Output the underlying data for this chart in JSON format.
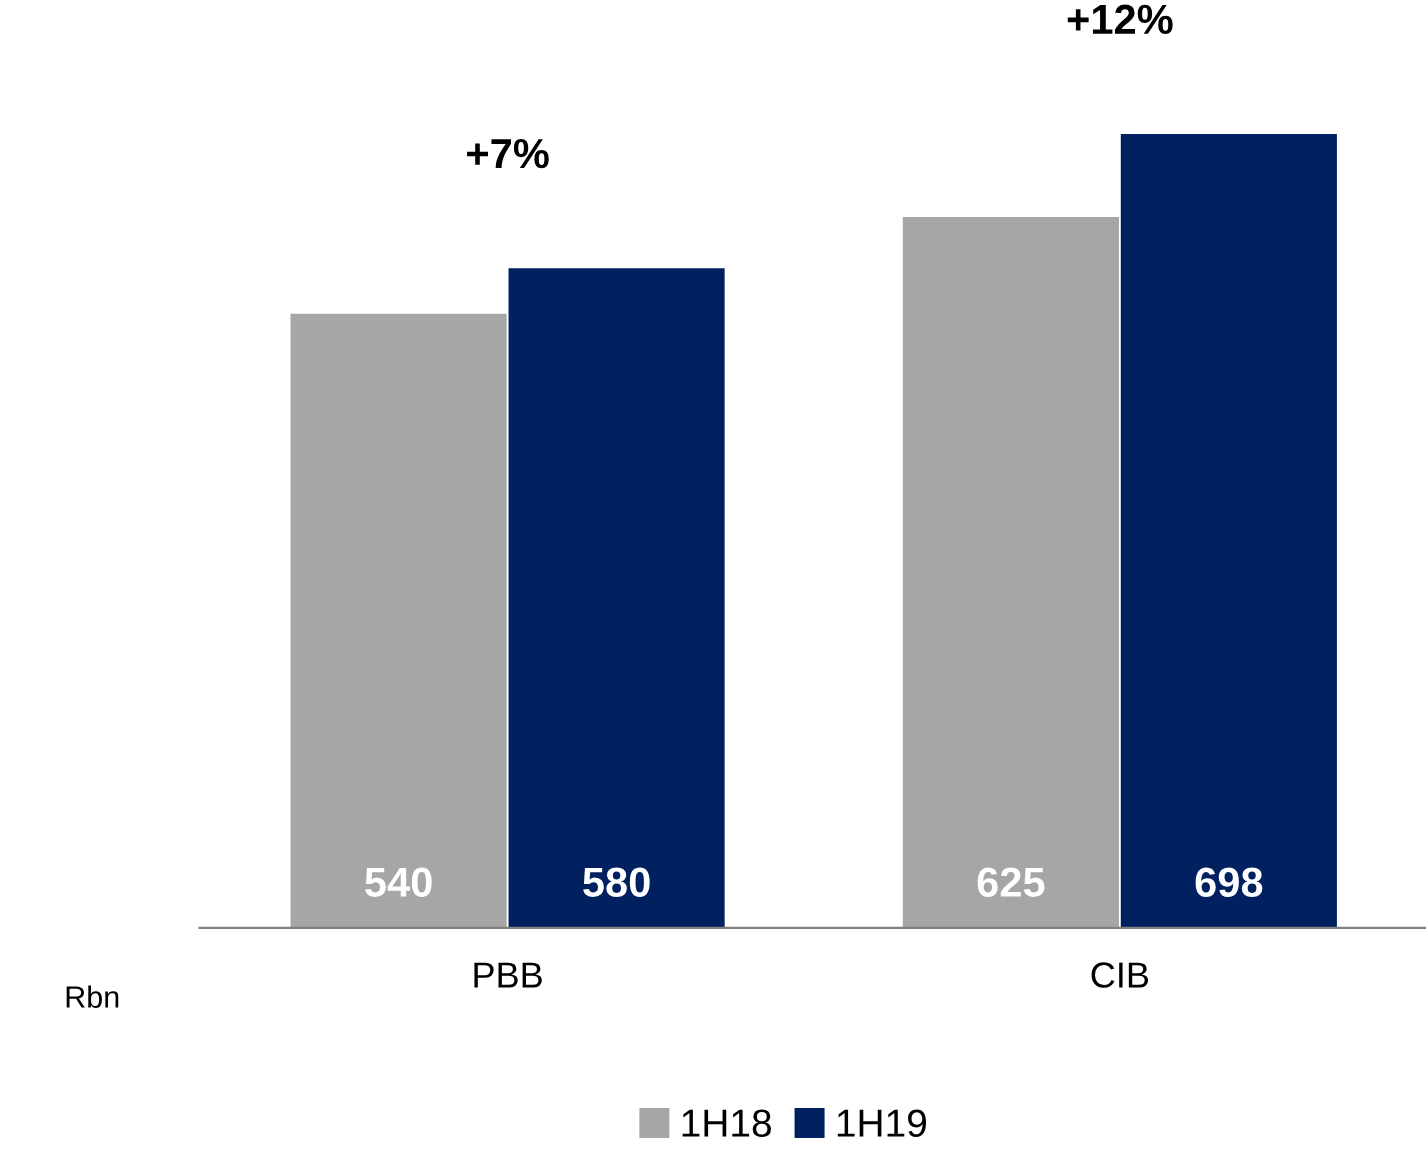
{
  "chart_data": {
    "type": "bar",
    "categories": [
      "PBB",
      "CIB"
    ],
    "series": [
      {
        "name": "1H18",
        "color": "#a6a6a6",
        "values": [
          540,
          625
        ]
      },
      {
        "name": "1H19",
        "color": "#002060",
        "values": [
          580,
          698
        ]
      }
    ],
    "data_labels": true,
    "legend": "bottom",
    "grid": false,
    "ylabel": "Rbn",
    "annotations": [
      "+7%",
      "+12%"
    ]
  }
}
